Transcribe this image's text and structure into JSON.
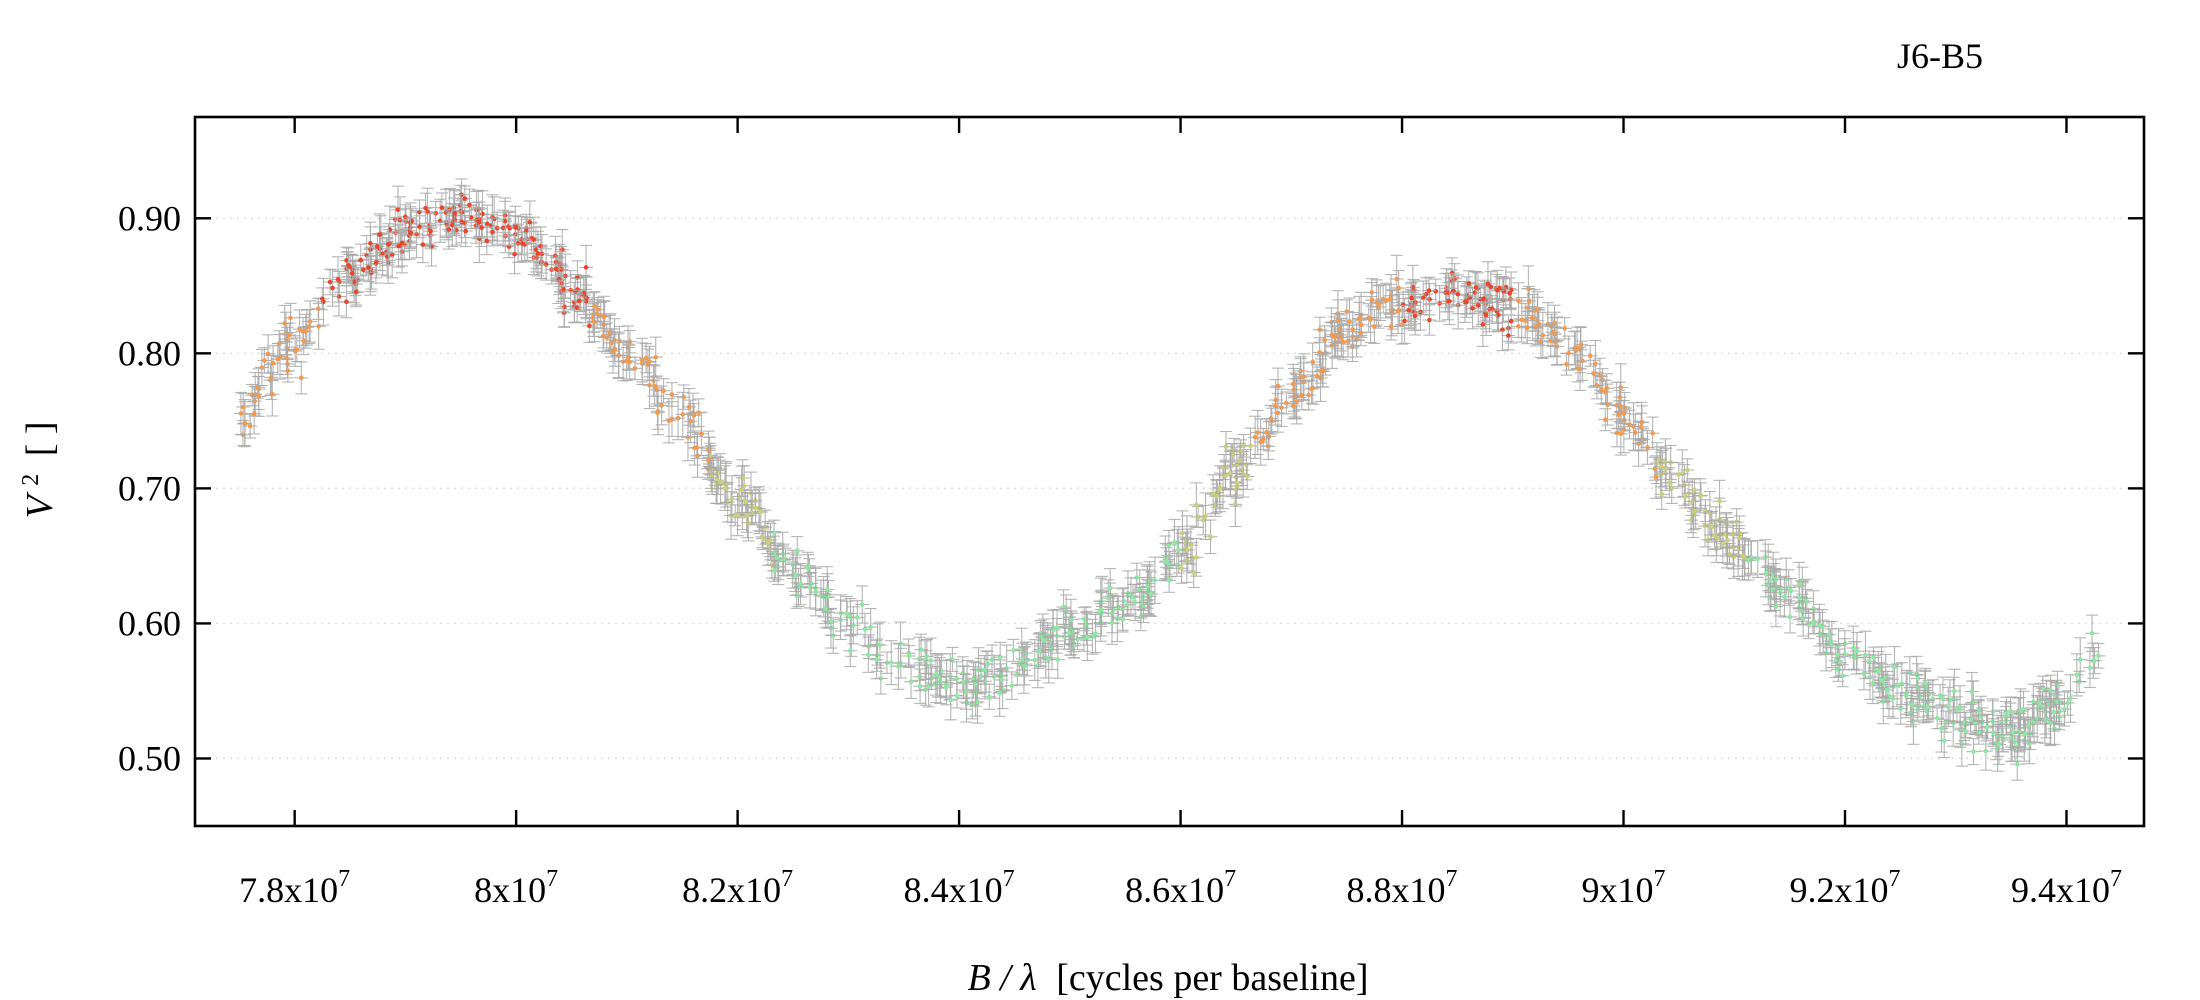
{
  "chart_data": {
    "type": "scatter",
    "title": "J6-B5",
    "xlabel_main": "B / λ",
    "xlabel_rest": "[cycles per baseline]",
    "ylabel_main": "V",
    "ylabel_sup": "2",
    "ylabel_rest": "[ ]",
    "xlim": [
      77100000,
      94700000
    ],
    "ylim": [
      0.45,
      0.975
    ],
    "y_ticks": [
      0.5,
      0.6,
      0.7,
      0.8,
      0.9
    ],
    "y_tick_labels": [
      "0.50",
      "0.60",
      "0.70",
      "0.80",
      "0.90"
    ],
    "x_ticks": [
      78000000,
      80000000,
      82000000,
      84000000,
      86000000,
      88000000,
      90000000,
      92000000,
      94000000
    ],
    "x_tick_mantissas": [
      "7.8x10",
      "8x10",
      "8.2x10",
      "8.4x10",
      "8.6x10",
      "8.8x10",
      "9x10",
      "9.2x10",
      "9.4x10"
    ],
    "x_tick_exponent": "7",
    "grid": "horizontal dotted",
    "legend": "none",
    "colors": {
      "high": "#e8452a",
      "mid_high": "#f39a4e",
      "mid": "#c9cf7a",
      "low": "#8de6a2",
      "error_bar": "#a9a9a9"
    },
    "series_description_points": {
      "x": [
        77500000,
        78000000,
        78500000,
        79000000,
        79500000,
        80000000,
        80500000,
        81000000,
        81500000,
        82000000,
        82500000,
        83000000,
        83500000,
        84000000,
        84500000,
        85000000,
        85500000,
        86000000,
        86500000,
        87000000,
        87500000,
        88000000,
        88500000,
        89000000,
        89500000,
        90000000,
        90500000,
        91000000,
        91500000,
        92000000,
        92500000,
        93000000,
        93500000,
        94000000,
        94300000
      ],
      "y": [
        0.75,
        0.81,
        0.86,
        0.89,
        0.9,
        0.89,
        0.85,
        0.8,
        0.75,
        0.69,
        0.64,
        0.6,
        0.57,
        0.555,
        0.565,
        0.59,
        0.615,
        0.655,
        0.71,
        0.77,
        0.82,
        0.835,
        0.845,
        0.835,
        0.805,
        0.755,
        0.7,
        0.66,
        0.62,
        0.58,
        0.55,
        0.53,
        0.52,
        0.545,
        0.575
      ]
    },
    "n_points": 1100,
    "noise_sd": 0.009,
    "error_bar_half": 0.011
  }
}
